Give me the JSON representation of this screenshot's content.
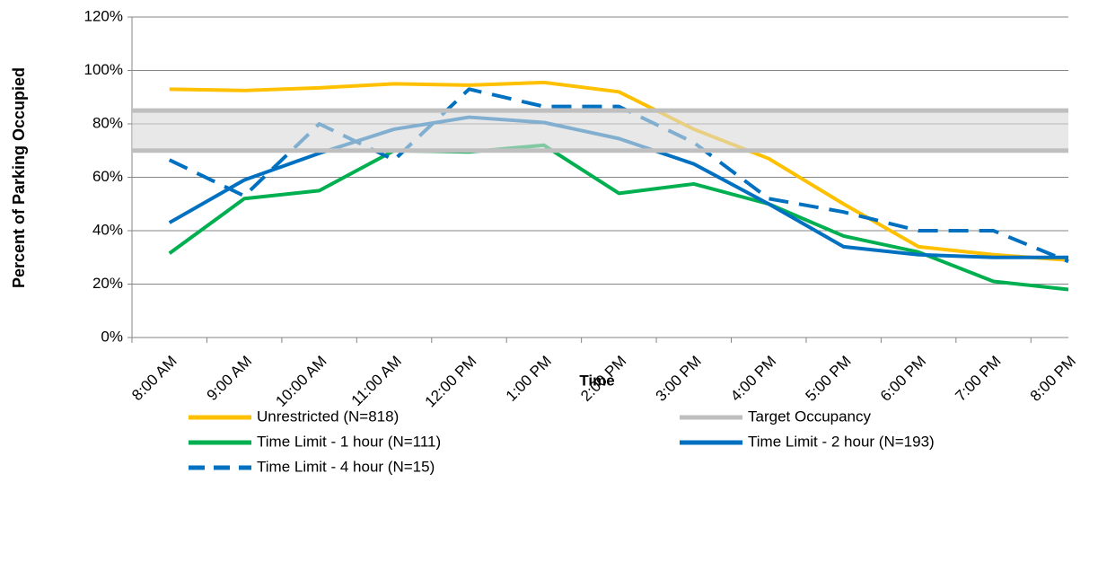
{
  "chart_data": {
    "type": "line",
    "x_label": "Time",
    "y_label": "Percent of Parking Occupied",
    "categories": [
      "8:00 AM",
      "9:00 AM",
      "10:00 AM",
      "11:00 AM",
      "12:00 PM",
      "1:00 PM",
      "2:00 PM",
      "3:00 PM",
      "4:00 PM",
      "5:00 PM",
      "6:00 PM",
      "7:00 PM",
      "8:00 PM"
    ],
    "series": [
      {
        "name": "Unrestricted (N=818)",
        "color": "#ffc000",
        "values": [
          93,
          92.5,
          93.5,
          95,
          94.5,
          95.5,
          92,
          78,
          67,
          50,
          34,
          31,
          29
        ]
      },
      {
        "name": "Target Occupancy",
        "color": "#bfbfbf",
        "range": [
          70,
          85
        ]
      },
      {
        "name": "Time Limit - 1 hour (N=111)",
        "color": "#00b050",
        "values": [
          31.5,
          52,
          55,
          70,
          69.5,
          72,
          54,
          57.5,
          50,
          38,
          32,
          21,
          18
        ]
      },
      {
        "name": "Time Limit - 2 hour (N=193)",
        "color": "#0070c0",
        "values": [
          43,
          59,
          69,
          78,
          82.5,
          80.5,
          74.5,
          65,
          50,
          34,
          31,
          30,
          30
        ]
      },
      {
        "name": "Time Limit - 4 hour (N=15)",
        "color": "#0070c0",
        "dashed": true,
        "values": [
          66.5,
          53,
          80,
          66.5,
          93,
          86.5,
          86.5,
          73,
          52,
          47,
          40,
          40,
          28.5
        ]
      }
    ],
    "ylim": [
      0,
      120
    ],
    "yticks": [
      {
        "value": 0,
        "label": "0%"
      },
      {
        "value": 20,
        "label": "20%"
      },
      {
        "value": 40,
        "label": "40%"
      },
      {
        "value": 60,
        "label": "60%"
      },
      {
        "value": 80,
        "label": "80%"
      },
      {
        "value": 100,
        "label": "100%"
      },
      {
        "value": 120,
        "label": "120%"
      }
    ],
    "grid": true
  }
}
